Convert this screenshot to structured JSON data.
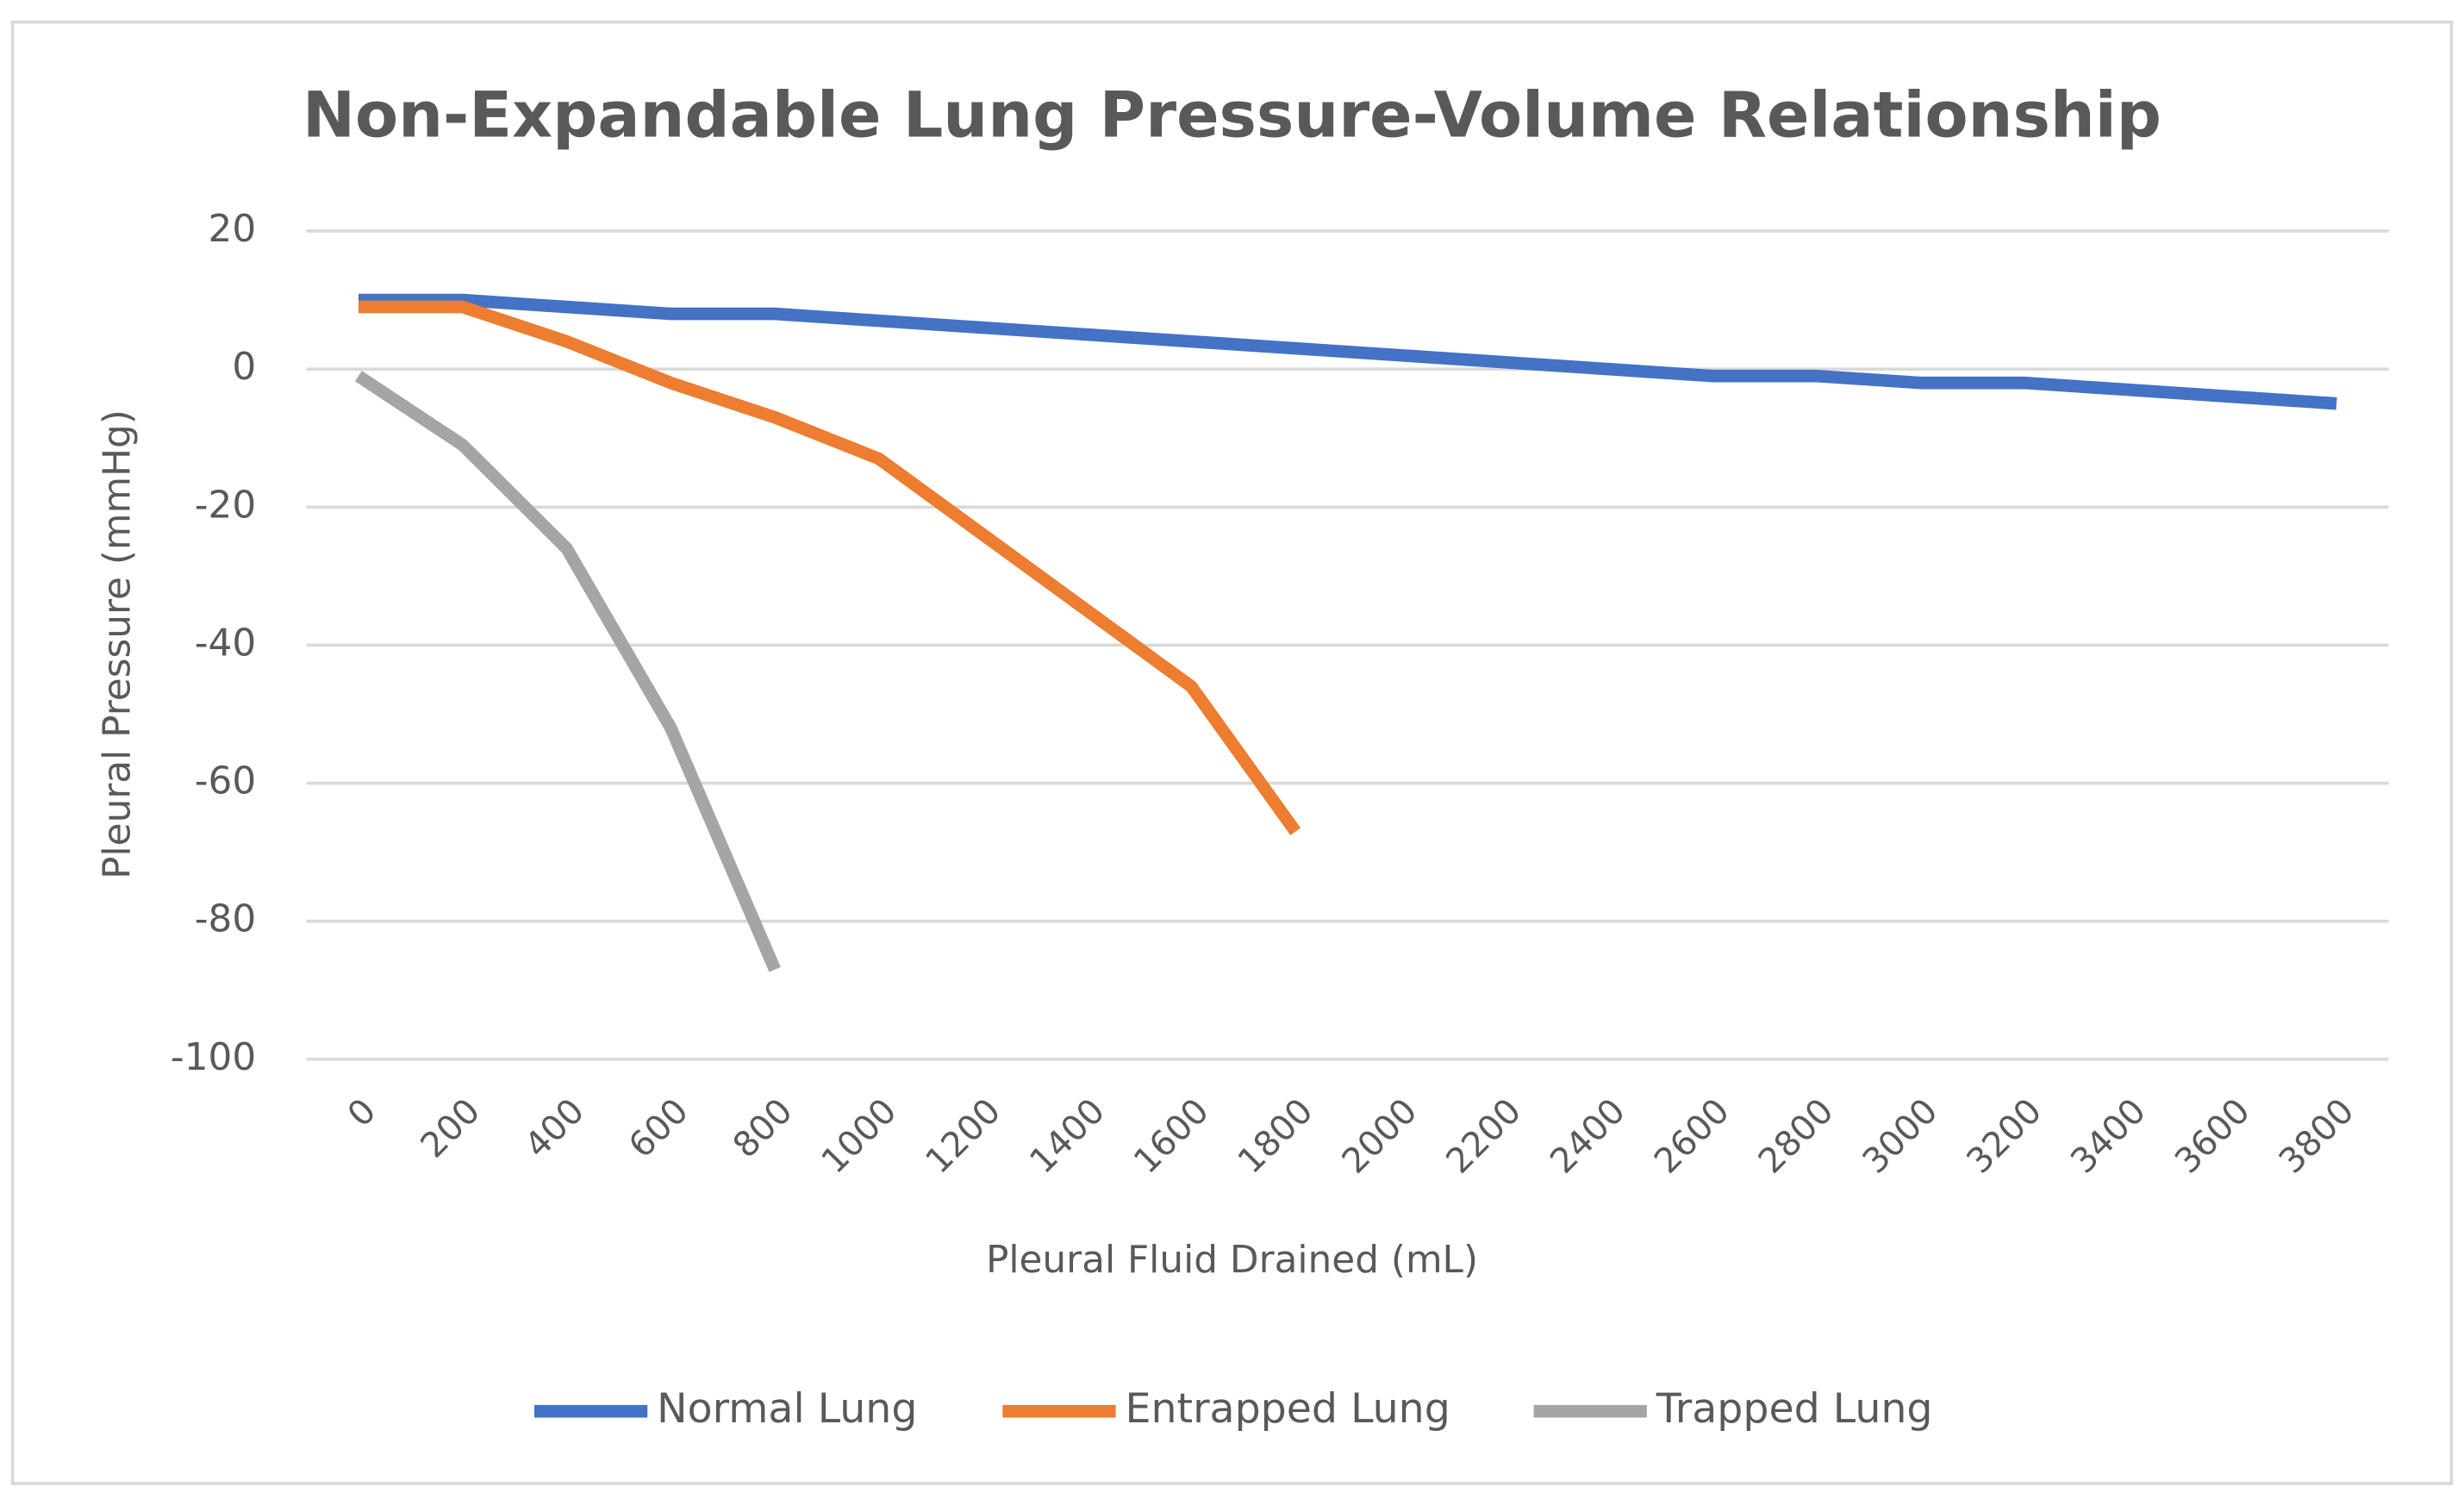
{
  "chart_data": {
    "type": "line",
    "title": "Non-Expandable Lung Pressure-Volume Relationship",
    "x_label": "Pleural Fluid Drained (mL)",
    "y_label": "Pleural Pressure (mmHg)",
    "categories": [
      0,
      200,
      400,
      600,
      800,
      1000,
      1200,
      1400,
      1600,
      1800,
      2000,
      2200,
      2400,
      2600,
      2800,
      3000,
      3200,
      3400,
      3600,
      3800
    ],
    "series": [
      {
        "name": "Normal Lung",
        "color": "#4472c4",
        "values": [
          10,
          10,
          9,
          8,
          8,
          7,
          6,
          5,
          4,
          3,
          2,
          1,
          0,
          -1,
          -1,
          -2,
          -2,
          -3,
          -4,
          -5
        ]
      },
      {
        "name": "Entrapped Lung",
        "color": "#ed7d31",
        "values": [
          9,
          9,
          4,
          -2,
          -7,
          -13,
          -24,
          -35,
          -46,
          -67,
          null,
          null,
          null,
          null,
          null,
          null,
          null,
          null,
          null,
          null
        ]
      },
      {
        "name": "Trapped Lung",
        "color": "#a5a5a5",
        "values": [
          -1,
          -11,
          -26,
          -52,
          -87,
          null,
          null,
          null,
          null,
          null,
          null,
          null,
          null,
          null,
          null,
          null,
          null,
          null,
          null,
          null
        ]
      }
    ],
    "ylim": [
      -100,
      20
    ],
    "yticks": [
      -100,
      -80,
      -60,
      -40,
      -20,
      0,
      20
    ],
    "grid": true,
    "legend": "bottom"
  }
}
